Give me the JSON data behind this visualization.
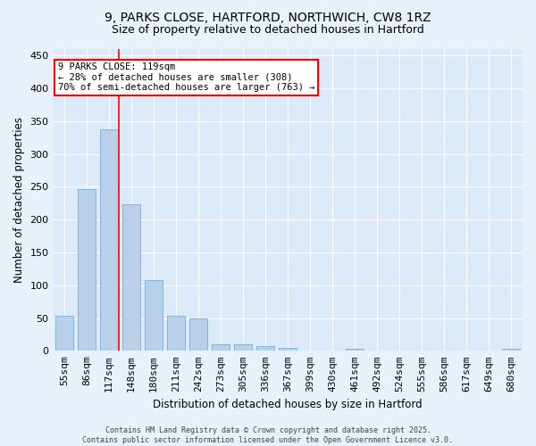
{
  "title_line1": "9, PARKS CLOSE, HARTFORD, NORTHWICH, CW8 1RZ",
  "title_line2": "Size of property relative to detached houses in Hartford",
  "xlabel": "Distribution of detached houses by size in Hartford",
  "ylabel": "Number of detached properties",
  "categories": [
    "55sqm",
    "86sqm",
    "117sqm",
    "148sqm",
    "180sqm",
    "211sqm",
    "242sqm",
    "273sqm",
    "305sqm",
    "336sqm",
    "367sqm",
    "399sqm",
    "430sqm",
    "461sqm",
    "492sqm",
    "524sqm",
    "555sqm",
    "586sqm",
    "617sqm",
    "649sqm",
    "680sqm"
  ],
  "values": [
    53,
    247,
    337,
    223,
    108,
    53,
    49,
    10,
    10,
    7,
    5,
    0,
    0,
    3,
    0,
    0,
    0,
    0,
    0,
    0,
    3
  ],
  "bar_color": "#b8d0ea",
  "bar_edge_color": "#7aaed4",
  "bg_color": "#dce9f8",
  "grid_color": "#ffffff",
  "fig_bg_color": "#e8f0fa",
  "red_line_bin": 2,
  "annotation_title": "9 PARKS CLOSE: 119sqm",
  "annotation_line2": "← 28% of detached houses are smaller (308)",
  "annotation_line3": "70% of semi-detached houses are larger (763) →",
  "ylim": [
    0,
    460
  ],
  "yticks": [
    0,
    50,
    100,
    150,
    200,
    250,
    300,
    350,
    400,
    450
  ],
  "footer_line1": "Contains HM Land Registry data © Crown copyright and database right 2025.",
  "footer_line2": "Contains public sector information licensed under the Open Government Licence v3.0."
}
